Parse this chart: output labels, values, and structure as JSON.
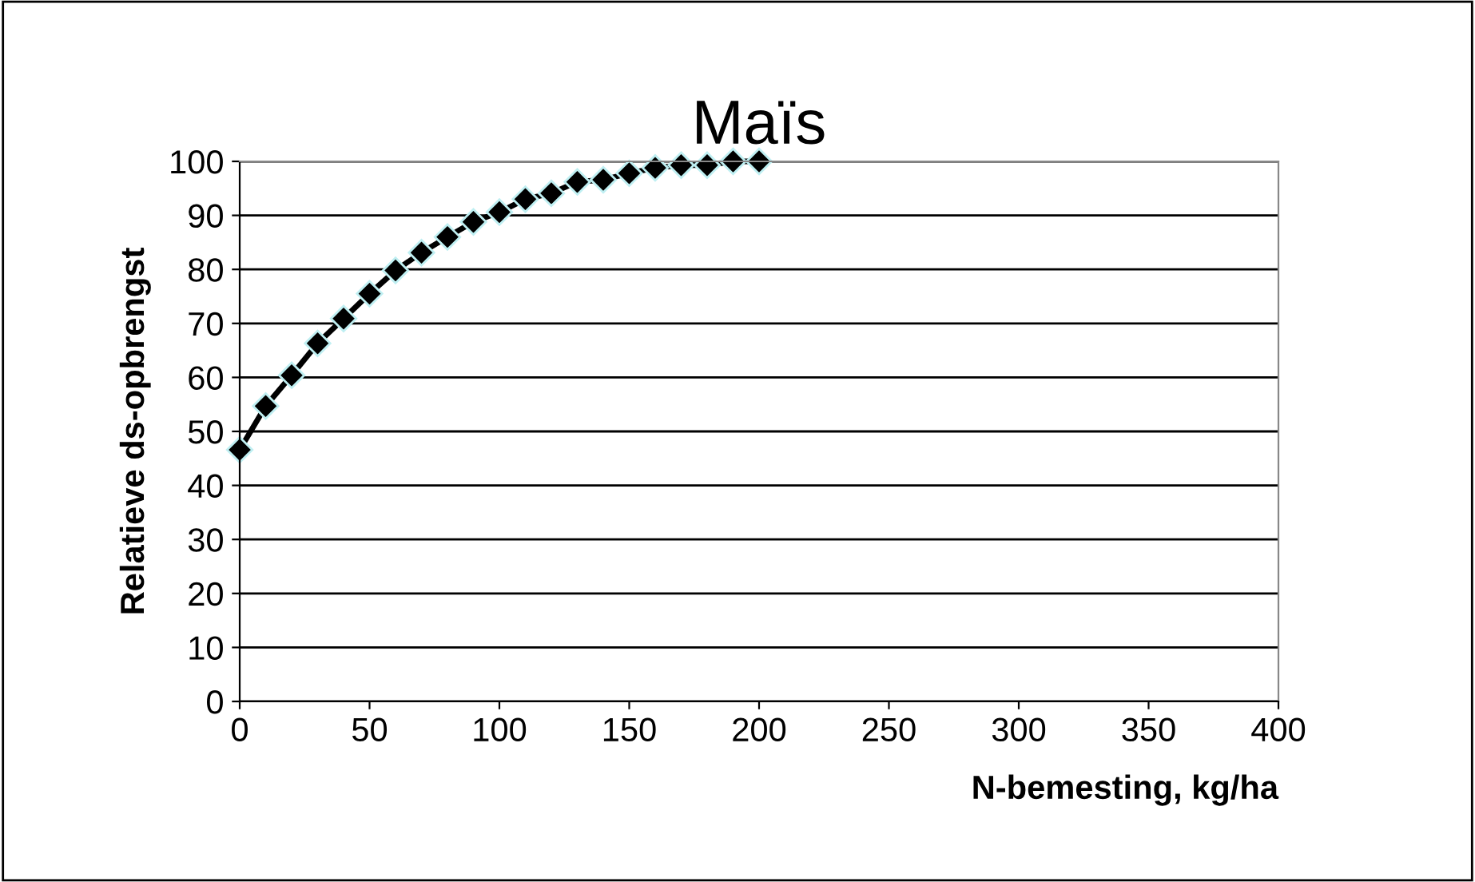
{
  "chart_data": {
    "type": "line",
    "title": "Maïs",
    "xlabel": "N-bemesting, kg/ha",
    "ylabel": "Relatieve ds-opbrengst",
    "x": [
      0,
      10,
      20,
      30,
      40,
      50,
      60,
      70,
      80,
      90,
      100,
      110,
      120,
      130,
      140,
      150,
      160,
      170,
      180,
      190,
      200
    ],
    "series": [
      {
        "color": "#000000",
        "values": [
          46.6,
          54.7,
          60.4,
          66.3,
          70.9,
          75.5,
          79.8,
          83.1,
          86.0,
          88.8,
          90.6,
          93.0,
          94.1,
          96.2,
          96.6,
          97.8,
          98.8,
          99.3,
          99.3,
          100,
          100
        ]
      }
    ],
    "xlim": [
      0,
      400
    ],
    "xticks": [
      0,
      50,
      100,
      150,
      200,
      250,
      300,
      350,
      400
    ],
    "ylim": [
      0,
      100
    ],
    "yticks": [
      0,
      10,
      20,
      30,
      40,
      50,
      60,
      70,
      80,
      90,
      100
    ],
    "grid": "y",
    "marker": "diamond",
    "line_style": "solid",
    "legend": false
  }
}
